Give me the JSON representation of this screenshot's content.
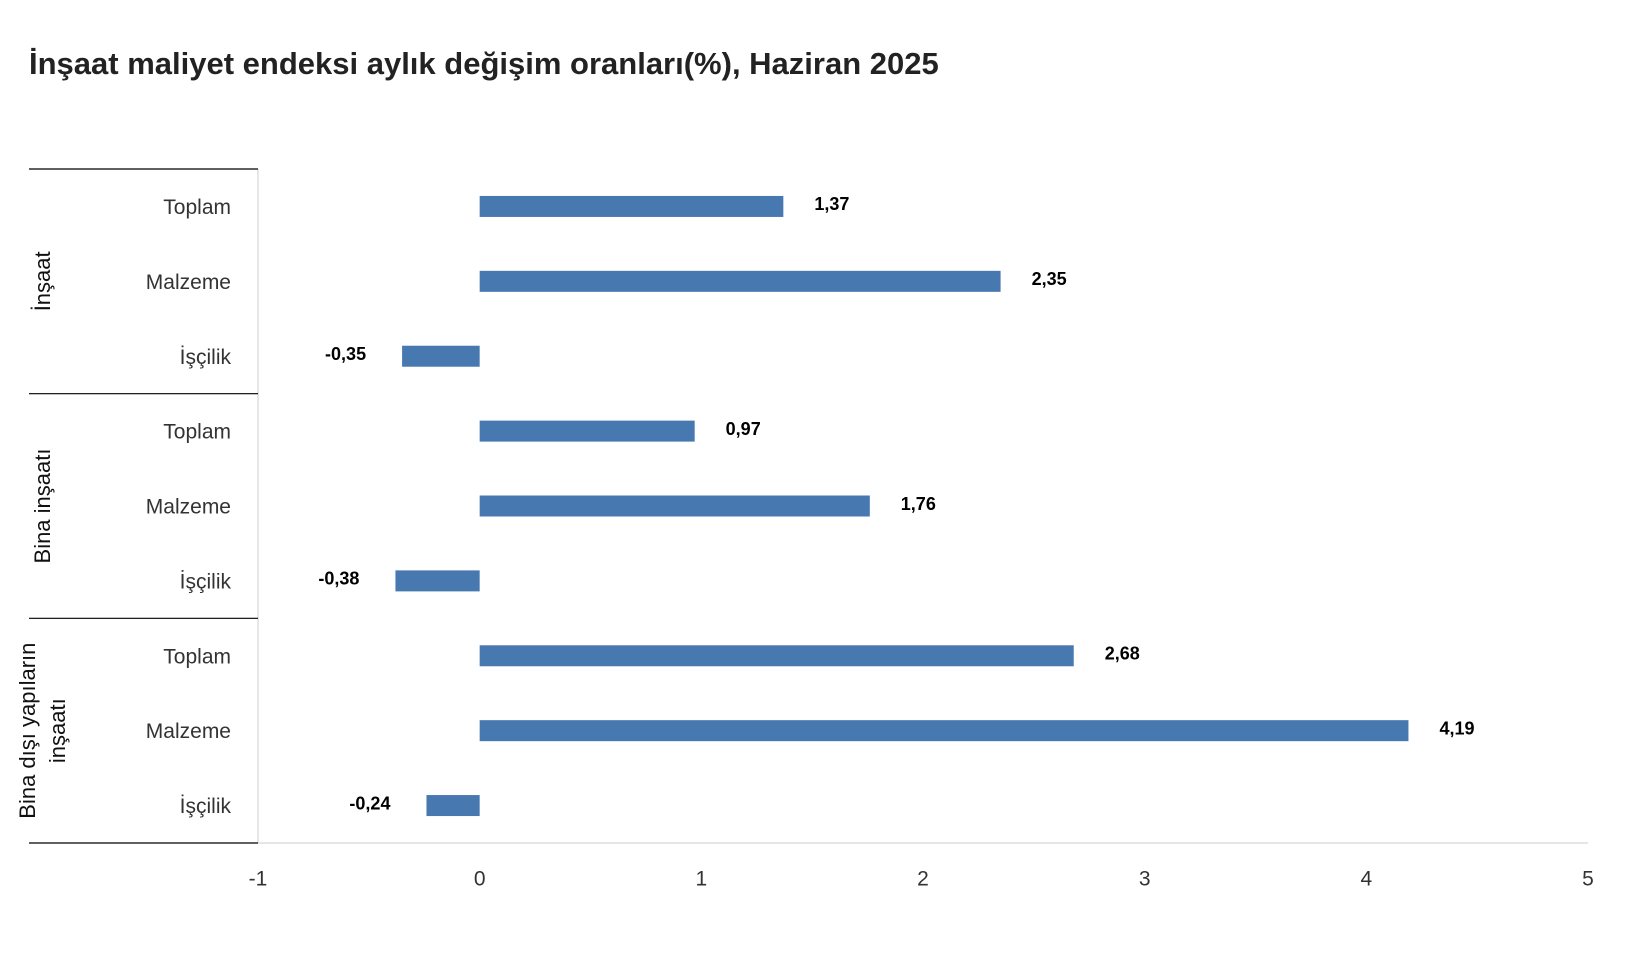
{
  "chart_data": {
    "type": "bar",
    "orientation": "horizontal",
    "title": "İnşaat maliyet endeksi aylık değişim oranları(%), Haziran 2025",
    "color": "#4878b0",
    "groups": [
      {
        "label_lines": [
          "İnşaat"
        ],
        "categories": [
          "Toplam",
          "Malzeme",
          "İşçilik"
        ],
        "values": [
          1.37,
          2.35,
          -0.35
        ],
        "value_labels": [
          "1,37",
          "2,35",
          "-0,35"
        ]
      },
      {
        "label_lines": [
          "Bina inşaatı"
        ],
        "categories": [
          "Toplam",
          "Malzeme",
          "İşçilik"
        ],
        "values": [
          0.97,
          1.76,
          -0.38
        ],
        "value_labels": [
          "0,97",
          "1,76",
          "-0,38"
        ]
      },
      {
        "label_lines": [
          "Bina dışı yapıların",
          "inşaatı"
        ],
        "categories": [
          "Toplam",
          "Malzeme",
          "İşçilik"
        ],
        "values": [
          2.68,
          4.19,
          -0.24
        ],
        "value_labels": [
          "2,68",
          "4,19",
          "-0,24"
        ]
      }
    ],
    "xlim": [
      -1,
      5
    ],
    "xticks": [
      -1,
      0,
      1,
      2,
      3,
      4,
      5
    ]
  }
}
